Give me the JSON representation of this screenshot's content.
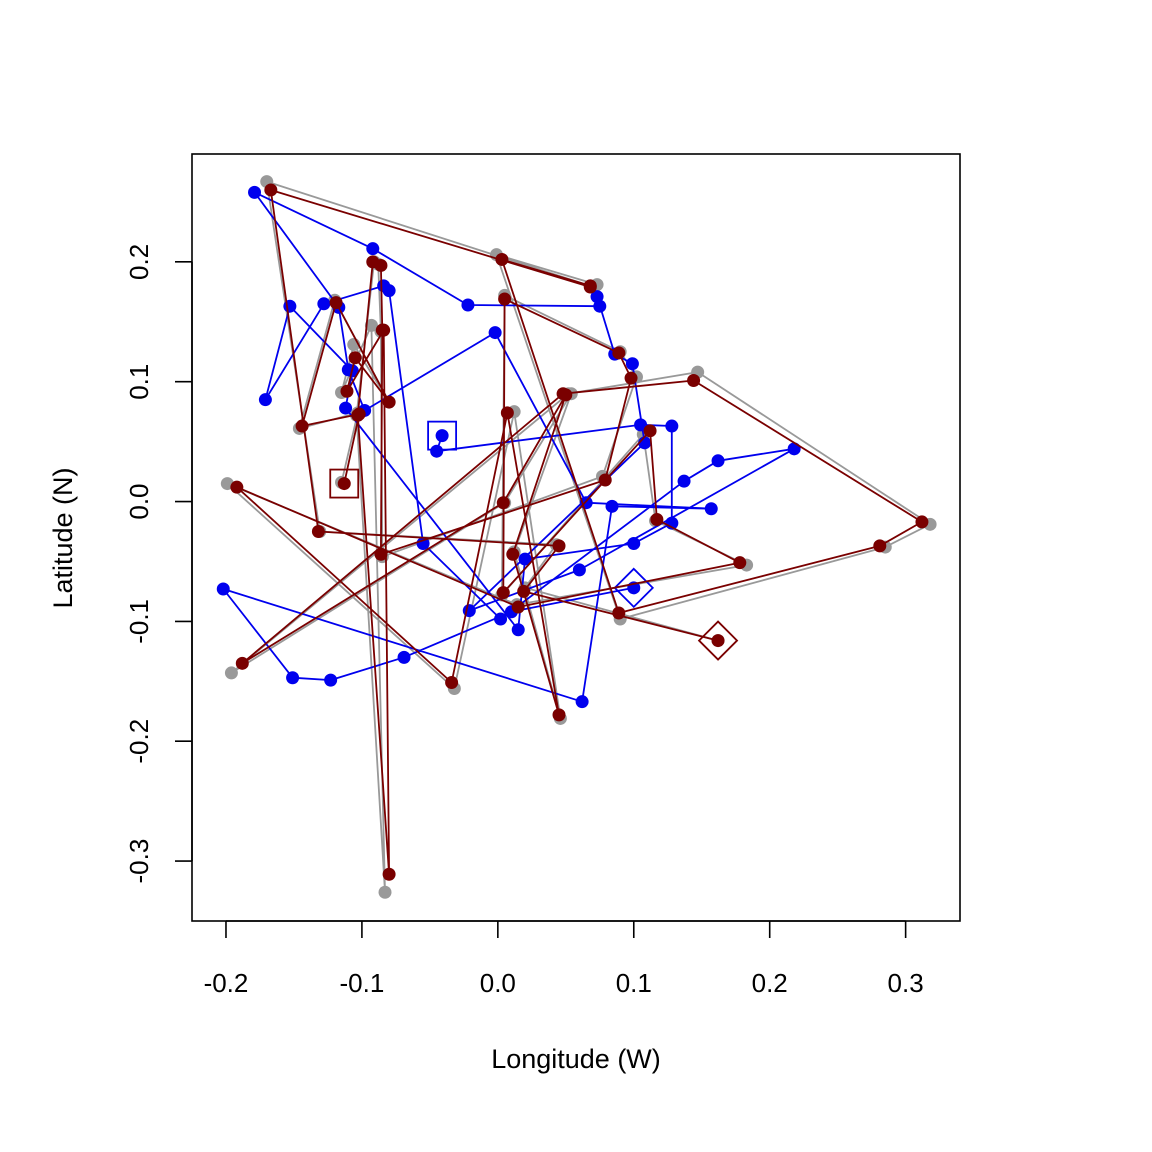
{
  "chart_data": {
    "type": "line",
    "title": "",
    "xlabel": "Longitude (W)",
    "ylabel": "Latitude (N)",
    "xlim": [
      -0.225,
      0.34
    ],
    "ylim": [
      -0.35,
      0.29
    ],
    "xticks": [
      -0.2,
      -0.1,
      0.0,
      0.1,
      0.2,
      0.3
    ],
    "xtick_labels": [
      "-0.2",
      "-0.1",
      "0.0",
      "0.1",
      "0.2",
      "0.3"
    ],
    "yticks": [
      -0.3,
      -0.2,
      -0.1,
      0.0,
      0.1,
      0.2
    ],
    "ytick_labels": [
      "-0.3",
      "-0.2",
      "-0.1",
      "0.0",
      "0.1",
      "0.2"
    ],
    "grid": false,
    "legend": "none",
    "colors": {
      "blue": "#0000ee",
      "gray": "#999999",
      "red": "#7a0000"
    },
    "series": [
      {
        "color": "#0000ee",
        "start_marker": "square",
        "end_marker": "diamond",
        "points": [
          [
            -0.041,
            0.055
          ],
          [
            -0.045,
            0.042
          ],
          [
            0.105,
            0.064
          ],
          [
            0.128,
            0.063
          ],
          [
            0.128,
            -0.018
          ],
          [
            0.1,
            -0.035
          ],
          [
            0.02,
            -0.048
          ],
          [
            0.015,
            -0.107
          ],
          [
            -0.112,
            0.078
          ],
          [
            -0.107,
            0.109
          ],
          [
            -0.153,
            0.163
          ],
          [
            -0.171,
            0.085
          ],
          [
            -0.128,
            0.165
          ],
          [
            -0.084,
            0.18
          ],
          [
            -0.08,
            0.176
          ],
          [
            -0.055,
            -0.035
          ],
          [
            0.002,
            -0.098
          ],
          [
            0.137,
            0.017
          ],
          [
            0.162,
            0.034
          ],
          [
            0.218,
            0.044
          ],
          [
            0.06,
            -0.057
          ],
          [
            -0.021,
            -0.091
          ],
          [
            0.108,
            0.049
          ],
          [
            0.099,
            0.115
          ],
          [
            0.086,
            0.123
          ],
          [
            0.073,
            0.171
          ],
          [
            0.075,
            0.163
          ],
          [
            -0.022,
            0.164
          ],
          [
            -0.092,
            0.211
          ],
          [
            -0.179,
            0.258
          ],
          [
            -0.117,
            0.162
          ],
          [
            -0.11,
            0.11
          ],
          [
            -0.098,
            0.076
          ],
          [
            -0.002,
            0.141
          ],
          [
            0.065,
            -0.001
          ],
          [
            0.157,
            -0.006
          ],
          [
            0.084,
            -0.004
          ],
          [
            0.062,
            -0.167
          ],
          [
            -0.202,
            -0.073
          ],
          [
            -0.151,
            -0.147
          ],
          [
            -0.123,
            -0.149
          ],
          [
            -0.069,
            -0.13
          ],
          [
            0.01,
            -0.092
          ],
          [
            0.1,
            -0.072
          ]
        ]
      },
      {
        "color": "#999999",
        "points": [
          [
            -0.115,
            0.016
          ],
          [
            -0.103,
            0.074
          ],
          [
            -0.146,
            0.061
          ],
          [
            -0.12,
            0.168
          ],
          [
            -0.08,
            0.083
          ],
          [
            -0.106,
            0.131
          ],
          [
            -0.115,
            0.091
          ],
          [
            -0.093,
            0.147
          ],
          [
            -0.083,
            -0.326
          ],
          [
            -0.104,
            0.072
          ],
          [
            -0.091,
            0.2
          ],
          [
            -0.088,
            0.198
          ],
          [
            -0.086,
            0.142
          ],
          [
            -0.085,
            -0.046
          ],
          [
            0.077,
            0.021
          ],
          [
            0.102,
            0.104
          ],
          [
            0.09,
            0.125
          ],
          [
            0.005,
            0.172
          ],
          [
            0.003,
            -0.078
          ],
          [
            0.107,
            0.056
          ],
          [
            0.116,
            -0.016
          ],
          [
            0.183,
            -0.053
          ],
          [
            0.014,
            -0.086
          ],
          [
            -0.199,
            0.015
          ],
          [
            -0.032,
            -0.156
          ],
          [
            0.012,
            0.075
          ],
          [
            0.046,
            -0.181
          ],
          [
            0.012,
            -0.042
          ],
          [
            0.054,
            0.09
          ],
          [
            0.005,
            -0.001
          ],
          [
            -0.196,
            -0.143
          ],
          [
            0.052,
            0.09
          ],
          [
            0.147,
            0.108
          ],
          [
            0.318,
            -0.019
          ],
          [
            0.285,
            -0.038
          ],
          [
            0.09,
            -0.098
          ],
          [
            -0.001,
            0.206
          ],
          [
            0.073,
            0.181
          ],
          [
            0.068,
            0.18
          ],
          [
            -0.17,
            0.267
          ],
          [
            -0.131,
            -0.025
          ],
          [
            0.043,
            -0.036
          ],
          [
            0.02,
            -0.072
          ],
          [
            0.162,
            -0.116
          ]
        ]
      },
      {
        "color": "#7a0000",
        "start_marker": "square",
        "end_marker": "diamond",
        "points": [
          [
            -0.113,
            0.015
          ],
          [
            -0.102,
            0.073
          ],
          [
            -0.144,
            0.063
          ],
          [
            -0.119,
            0.166
          ],
          [
            -0.08,
            0.083
          ],
          [
            -0.105,
            0.12
          ],
          [
            -0.111,
            0.092
          ],
          [
            -0.084,
            0.143
          ],
          [
            -0.08,
            -0.311
          ],
          [
            -0.103,
            0.072
          ],
          [
            -0.092,
            0.2
          ],
          [
            -0.086,
            0.197
          ],
          [
            -0.085,
            0.143
          ],
          [
            -0.086,
            -0.044
          ],
          [
            0.079,
            0.018
          ],
          [
            0.098,
            0.103
          ],
          [
            0.089,
            0.124
          ],
          [
            0.005,
            0.169
          ],
          [
            0.004,
            -0.076
          ],
          [
            0.112,
            0.059
          ],
          [
            0.117,
            -0.015
          ],
          [
            0.178,
            -0.051
          ],
          [
            0.015,
            -0.088
          ],
          [
            -0.192,
            0.012
          ],
          [
            -0.034,
            -0.151
          ],
          [
            0.007,
            0.074
          ],
          [
            0.045,
            -0.178
          ],
          [
            0.011,
            -0.044
          ],
          [
            0.05,
            0.089
          ],
          [
            0.004,
            -0.001
          ],
          [
            -0.188,
            -0.135
          ],
          [
            0.048,
            0.09
          ],
          [
            0.144,
            0.101
          ],
          [
            0.312,
            -0.017
          ],
          [
            0.281,
            -0.037
          ],
          [
            0.089,
            -0.093
          ],
          [
            0.003,
            0.202
          ],
          [
            0.068,
            0.18
          ],
          [
            0.068,
            0.179
          ],
          [
            -0.167,
            0.26
          ],
          [
            -0.132,
            -0.025
          ],
          [
            0.045,
            -0.037
          ],
          [
            0.019,
            -0.075
          ],
          [
            0.162,
            -0.116
          ]
        ]
      }
    ]
  }
}
